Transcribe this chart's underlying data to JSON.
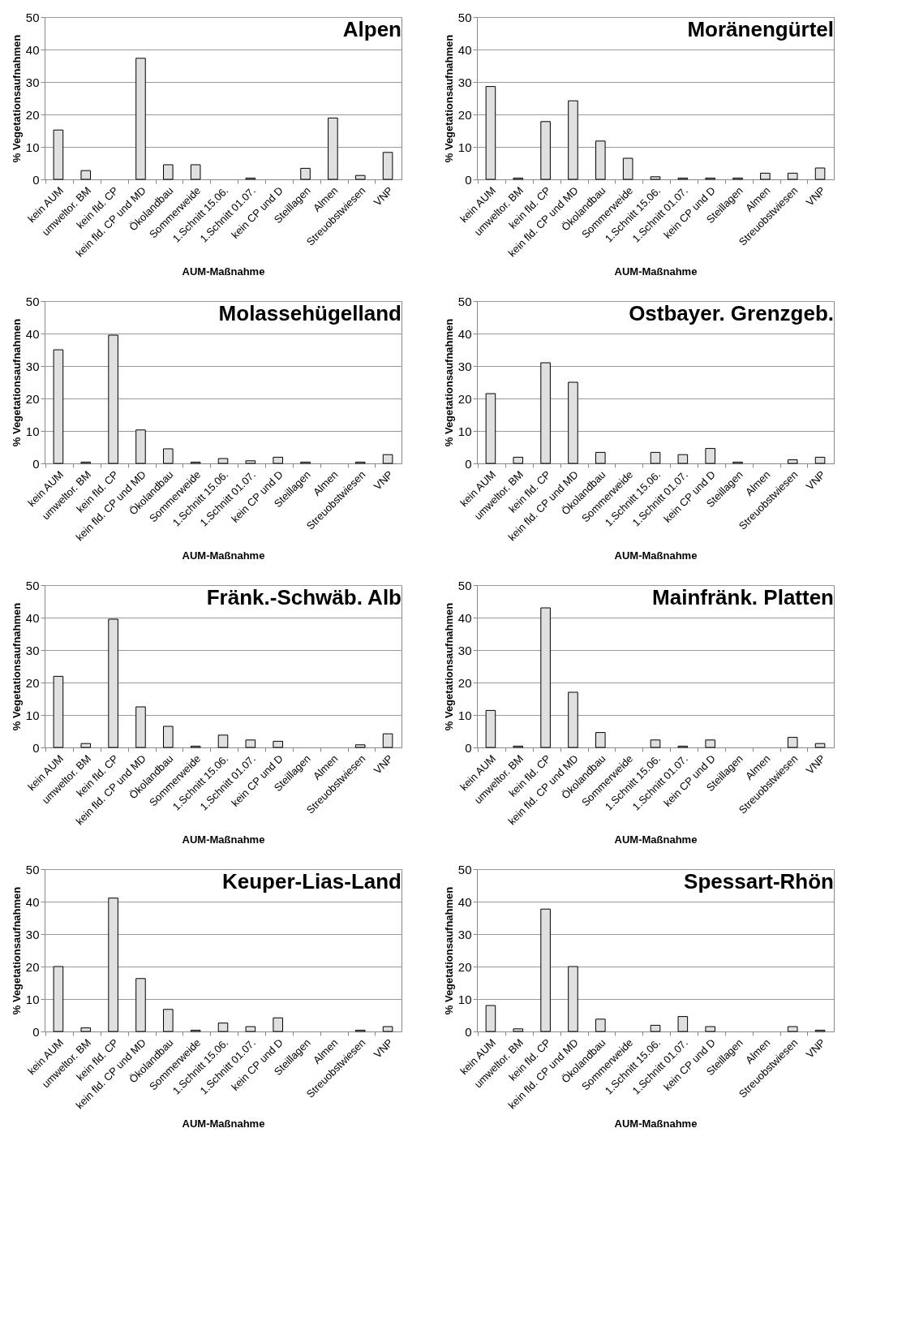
{
  "chart_data": [
    {
      "type": "bar",
      "title": "Alpen",
      "xlabel": "AUM-Maßnahme",
      "ylabel": "% Vegetationsaufnahmen",
      "categories": [
        "kein AUM",
        "umweltor. BM",
        "kein fld. CP",
        "kein fld. CP und MD",
        "Ökolandbau",
        "Sommerweide",
        "1.Schnitt 15.06.",
        "1.Schnitt 01.07.",
        "kein CP und D",
        "Steillagen",
        "Almen",
        "Streuobstwiesen",
        "VNP"
      ],
      "values": [
        15.2,
        2.7,
        null,
        37.3,
        4.5,
        4.5,
        null,
        0.4,
        null,
        3.4,
        18.9,
        1.2,
        8.3
      ],
      "color": "#e0e0e0",
      "ylim": [
        0,
        50
      ],
      "yticks": [
        0,
        10,
        20,
        30,
        40,
        50
      ],
      "grid": "y"
    },
    {
      "type": "bar",
      "title": "Moränengürtel",
      "xlabel": "AUM-Maßnahme",
      "ylabel": "% Vegetationsaufnahmen",
      "categories": [
        "kein AUM",
        "umweltor. BM",
        "kein fld. CP",
        "kein fld. CP und MD",
        "Ökolandbau",
        "Sommerweide",
        "1.Schnitt 15.06.",
        "1.Schnitt 01.07.",
        "kein CP und D",
        "Steillagen",
        "Almen",
        "Streuobstwiesen",
        "VNP"
      ],
      "values": [
        28.6,
        0.4,
        17.8,
        24.2,
        11.8,
        6.5,
        0.8,
        0.4,
        0.4,
        0.4,
        1.9,
        1.9,
        3.5
      ],
      "color": "#e0e0e0",
      "ylim": [
        0,
        50
      ],
      "yticks": [
        0,
        10,
        20,
        30,
        40,
        50
      ],
      "grid": "y"
    },
    {
      "type": "bar",
      "title": "Molassehügelland",
      "xlabel": "AUM-Maßnahme",
      "ylabel": "% Vegetationsaufnahmen",
      "categories": [
        "kein AUM",
        "umweltor. BM",
        "kein fld. CP",
        "kein fld. CP und MD",
        "Ökolandbau",
        "Sommerweide",
        "1.Schnitt 15.06.",
        "1.Schnitt 01.07.",
        "kein CP und D",
        "Steillagen",
        "Almen",
        "Streuobstwiesen",
        "VNP"
      ],
      "values": [
        35,
        0.4,
        39.5,
        10.3,
        4.5,
        0.4,
        1.5,
        0.8,
        1.9,
        0.4,
        null,
        0.4,
        2.7
      ],
      "color": "#e0e0e0",
      "ylim": [
        0,
        50
      ],
      "yticks": [
        0,
        10,
        20,
        30,
        40,
        50
      ],
      "grid": "y"
    },
    {
      "type": "bar",
      "title": "Ostbayer. Grenzgeb.",
      "xlabel": "AUM-Maßnahme",
      "ylabel": "% Vegetationsaufnahmen",
      "categories": [
        "kein AUM",
        "umweltor. BM",
        "kein fld. CP",
        "kein fld. CP und MD",
        "Ökolandbau",
        "Sommerweide",
        "1.Schnitt 15.06.",
        "1.Schnitt 01.07.",
        "kein CP und D",
        "Steillagen",
        "Almen",
        "Streuobstwiesen",
        "VNP"
      ],
      "values": [
        21.5,
        1.9,
        31,
        25,
        3.4,
        null,
        3.4,
        2.7,
        4.6,
        0.4,
        null,
        1.1,
        1.9
      ],
      "color": "#e0e0e0",
      "ylim": [
        0,
        50
      ],
      "yticks": [
        0,
        10,
        20,
        30,
        40,
        50
      ],
      "grid": "y"
    },
    {
      "type": "bar",
      "title": "Fränk.-Schwäb. Alb",
      "xlabel": "AUM-Maßnahme",
      "ylabel": "% Vegetationsaufnahmen",
      "categories": [
        "kein AUM",
        "umweltor. BM",
        "kein fld. CP",
        "kein fld. CP und MD",
        "Ökolandbau",
        "Sommerweide",
        "1.Schnitt 15.06.",
        "1.Schnitt 01.07.",
        "kein CP und D",
        "Steillagen",
        "Almen",
        "Streuobstwiesen",
        "VNP"
      ],
      "values": [
        21.9,
        1.2,
        39.5,
        12.5,
        6.5,
        0.4,
        3.8,
        2.3,
        1.9,
        null,
        null,
        0.8,
        4.2
      ],
      "color": "#e0e0e0",
      "ylim": [
        0,
        50
      ],
      "yticks": [
        0,
        10,
        20,
        30,
        40,
        50
      ],
      "grid": "y"
    },
    {
      "type": "bar",
      "title": "Mainfränk. Platten",
      "xlabel": "AUM-Maßnahme",
      "ylabel": "% Vegetationsaufnahmen",
      "categories": [
        "kein AUM",
        "umweltor. BM",
        "kein fld. CP",
        "kein fld. CP und MD",
        "Ökolandbau",
        "Sommerweide",
        "1.Schnitt 15.06.",
        "1.Schnitt 01.07.",
        "kein CP und D",
        "Steillagen",
        "Almen",
        "Streuobstwiesen",
        "VNP"
      ],
      "values": [
        11.4,
        0.4,
        43,
        17,
        4.6,
        null,
        2.3,
        0.4,
        2.3,
        null,
        null,
        3.1,
        1.2
      ],
      "color": "#e0e0e0",
      "ylim": [
        0,
        50
      ],
      "yticks": [
        0,
        10,
        20,
        30,
        40,
        50
      ],
      "grid": "y"
    },
    {
      "type": "bar",
      "title": "Keuper-Lias-Land",
      "xlabel": "AUM-Maßnahme",
      "ylabel": "% Vegetationsaufnahmen",
      "categories": [
        "kein AUM",
        "umweltor. BM",
        "kein fld. CP",
        "kein fld. CP und MD",
        "Ökolandbau",
        "Sommerweide",
        "1.Schnitt 15.06.",
        "1.Schnitt 01.07.",
        "kein CP und D",
        "Steillagen",
        "Almen",
        "Streuobstwiesen",
        "VNP"
      ],
      "values": [
        20,
        1.1,
        41.1,
        16.3,
        6.8,
        0.4,
        2.6,
        1.5,
        4.2,
        null,
        null,
        0.4,
        1.5
      ],
      "color": "#e0e0e0",
      "ylim": [
        0,
        50
      ],
      "yticks": [
        0,
        10,
        20,
        30,
        40,
        50
      ],
      "grid": "y"
    },
    {
      "type": "bar",
      "title": "Spessart-Rhön",
      "xlabel": "AUM-Maßnahme",
      "ylabel": "% Vegetationsaufnahmen",
      "categories": [
        "kein AUM",
        "umweltor. BM",
        "kein fld. CP",
        "kein fld. CP und MD",
        "Ökolandbau",
        "Sommerweide",
        "1.Schnitt 15.06.",
        "1.Schnitt 01.07.",
        "kein CP und D",
        "Steillagen",
        "Almen",
        "Streuobstwiesen",
        "VNP"
      ],
      "values": [
        8,
        0.8,
        37.7,
        20,
        3.8,
        null,
        1.9,
        4.6,
        1.5,
        null,
        null,
        1.5,
        0.4
      ],
      "color": "#e0e0e0",
      "ylim": [
        0,
        50
      ],
      "yticks": [
        0,
        10,
        20,
        30,
        40,
        50
      ],
      "grid": "y"
    }
  ]
}
